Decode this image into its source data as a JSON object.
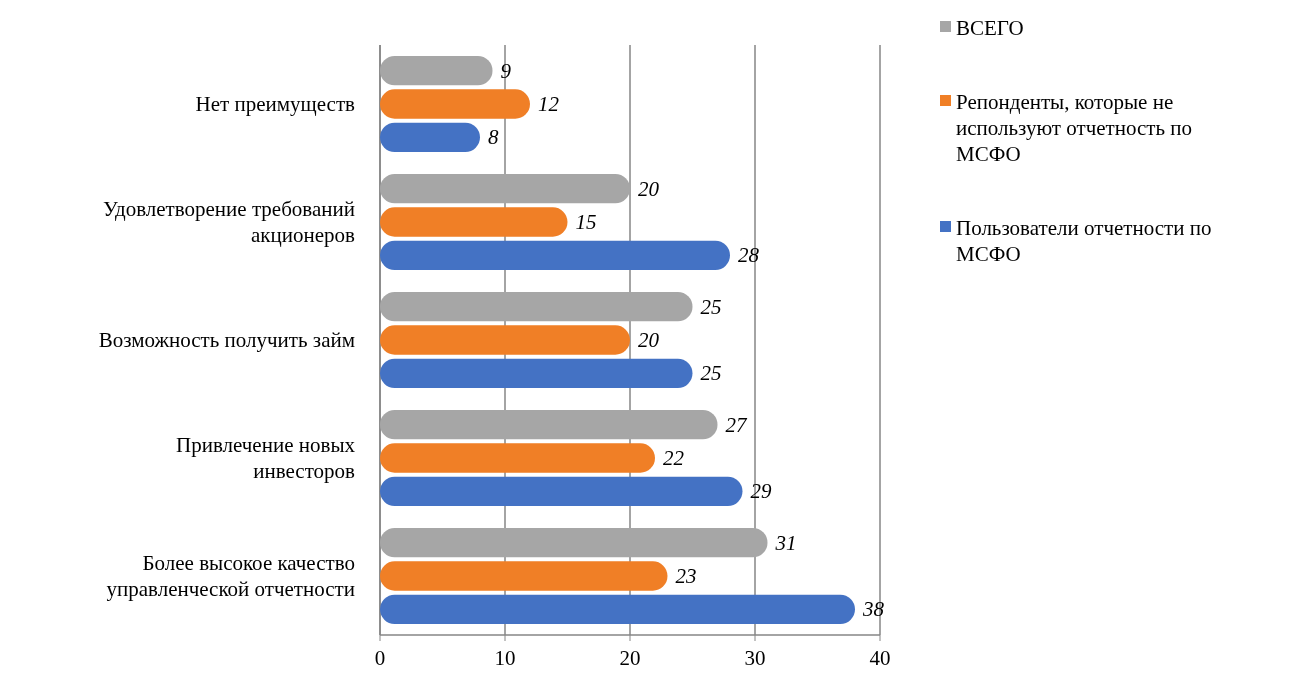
{
  "chart_data": {
    "type": "bar",
    "orientation": "horizontal",
    "categories": [
      "Нет преимуществ",
      "Удовлетворение требований акционеров",
      "Возможность получить займ",
      "Привлечение новых инвесторов",
      "Более высокое качество управленческой отчетности"
    ],
    "series": [
      {
        "name": "ВСЕГО",
        "color": "#a6a6a6",
        "values": [
          9,
          20,
          25,
          27,
          31
        ]
      },
      {
        "name": "Репонденты, которые не используют отчетность по МСФО",
        "color": "#f07f26",
        "values": [
          12,
          15,
          20,
          22,
          23
        ]
      },
      {
        "name": "Пользователи отчетности по МСФО",
        "color": "#4472c4",
        "values": [
          8,
          28,
          25,
          29,
          38
        ]
      }
    ],
    "xlim": [
      0,
      40
    ],
    "xticks": [
      0,
      10,
      20,
      30,
      40
    ],
    "grid": "x",
    "legend": "top right",
    "data_labels": true
  }
}
